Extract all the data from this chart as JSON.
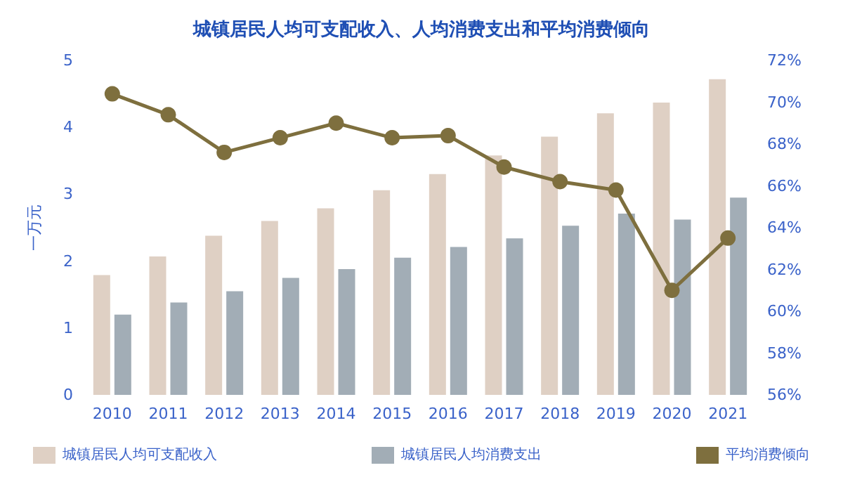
{
  "chart_data": {
    "type": "bar",
    "title": "城镇居民人均可支配收入、人均消费支出和平均消费倾向",
    "ylabel": "一万元",
    "categories": [
      "2010",
      "2011",
      "2012",
      "2013",
      "2014",
      "2015",
      "2016",
      "2017",
      "2018",
      "2019",
      "2020",
      "2021"
    ],
    "series": [
      {
        "name": "城镇居民人均可支配收入",
        "color": "#dfd0c4",
        "values": [
          1.79,
          2.07,
          2.38,
          2.6,
          2.79,
          3.06,
          3.3,
          3.58,
          3.86,
          4.21,
          4.37,
          4.72
        ]
      },
      {
        "name": "城镇居民人均消费支出",
        "color": "#a2adb6",
        "values": [
          1.2,
          1.38,
          1.55,
          1.75,
          1.88,
          2.05,
          2.21,
          2.34,
          2.53,
          2.71,
          2.62,
          2.95
        ]
      },
      {
        "name": "平均消费倾向",
        "type": "line",
        "axis": "y2",
        "color": "#7e6f3e",
        "values": [
          70.4,
          69.4,
          67.6,
          68.3,
          69.0,
          68.3,
          68.4,
          66.9,
          66.2,
          65.8,
          61.0,
          63.5
        ]
      }
    ],
    "ylim": [
      0,
      5
    ],
    "yticks": [
      0,
      1,
      2,
      3,
      4,
      5
    ],
    "y2lim": [
      56,
      72
    ],
    "y2ticks": [
      {
        "value": 56,
        "label": "56%"
      },
      {
        "value": 58,
        "label": "58%"
      },
      {
        "value": 60,
        "label": "60%"
      },
      {
        "value": 62,
        "label": "62%"
      },
      {
        "value": 64,
        "label": "64%"
      },
      {
        "value": 66,
        "label": "66%"
      },
      {
        "value": 68,
        "label": "68%"
      },
      {
        "value": 70,
        "label": "70%"
      },
      {
        "value": 72,
        "label": "72%"
      }
    ],
    "grid": false,
    "legend": "bottom",
    "marker": "circle",
    "line_style": "solid"
  }
}
